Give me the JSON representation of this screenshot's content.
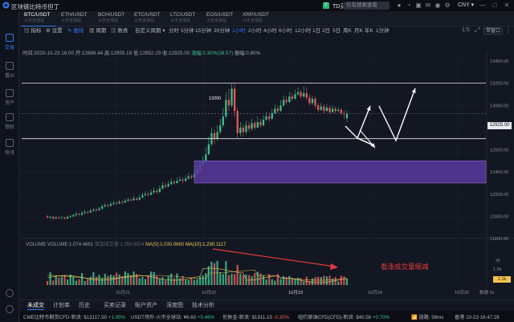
{
  "window": {
    "title": "区块链比特币但丁",
    "td_label": "TD买入",
    "search_placeholder": "仅有搜索查看",
    "currency": "CNY",
    "currency_arrow": "▾"
  },
  "sidebar": {
    "items": [
      {
        "label": "交易",
        "icon": "chart-icon"
      },
      {
        "label": "看AI",
        "icon": "eye-icon"
      },
      {
        "label": "资产",
        "icon": "wallet-icon"
      },
      {
        "label": "授权",
        "icon": "key-icon"
      },
      {
        "label": "快讯",
        "icon": "news-icon"
      }
    ]
  },
  "symbol_tabs": [
    {
      "name": "BTC/USDT",
      "sub": "火币全球站"
    },
    {
      "name": "ETH/USDT",
      "sub": "火币全球站"
    },
    {
      "name": "BCH/USDT",
      "sub": "火币全球站"
    },
    {
      "name": "ETC/USDT",
      "sub": "火币全球站"
    },
    {
      "name": "LTC/USDT",
      "sub": "火币全球站"
    },
    {
      "name": "EOS/USDT",
      "sub": "火币全球站"
    },
    {
      "name": "XRP/USDT",
      "sub": "火币全球站"
    }
  ],
  "toolbar": {
    "tools": [
      "指标",
      "设置",
      "画线",
      "周期",
      "数表"
    ],
    "active_tool": "画线",
    "time_define": "自定义周期",
    "periods": [
      "分时",
      "5分钟",
      "15分钟",
      "30分钟",
      "1小时",
      "2小时",
      "4小时",
      "6小时",
      "12小时",
      "1日",
      "2日",
      "5日",
      "周K",
      "月K",
      "年K",
      "1分钟"
    ],
    "active_period": "1小时",
    "zoom": "1:5",
    "pro_label": "带窗口"
  },
  "ohlc": {
    "time": "时间:2020-10-23 16:00",
    "open": "开:12886.44",
    "high": "高:12955.19",
    "low": "低:12852.29",
    "close": "收:12925.00",
    "change": "涨幅:0.30%(38.57)",
    "amplitude": "振幅:0.80%"
  },
  "price_axis": {
    "ticks": [
      "13400.00",
      "13200.00",
      "13000.00",
      "12800.00",
      "12600.00",
      "12400.00",
      "12200.00",
      "12000.00",
      "11800.00"
    ],
    "current_price": "12925.00"
  },
  "peak_label": "13200",
  "volume": {
    "title": "VOLUME",
    "value": "VOLUME:1,074.4661",
    "muted": "增加成交量:1,358.6504",
    "ma5": "MA(5):1,030.0660",
    "ma10": "MA(10):1,230.1117",
    "axis_label": "1.1k",
    "axis_ticks": [
      "2k",
      "1.5k"
    ]
  },
  "annotation": "看涨成交量缩减",
  "dates": [
    "10月21",
    "10月22",
    "10月23",
    "10月24",
    "10月25"
  ],
  "date_right": "数据 5v",
  "bottom_tabs": [
    "未成交",
    "计划单",
    "历史",
    "买卖记录",
    "账户资产",
    "深度图",
    "技术分析"
  ],
  "status": {
    "item1_name": "CME比特币期货CFD-新浪:",
    "item1_val": "$13117.50",
    "item1_chg": "+1.00%",
    "item2_name": "USDT场外-火币全球站:",
    "item2_val": "¥6.60",
    "item2_chg": "+0.46%",
    "item3_name": "伦敦金-新浪:",
    "item3_val": "$1911.19",
    "item3_chg": "-0.30%",
    "item4_name": "纽约原油CFD(CFD)-新浪:",
    "item4_val": "$40.56",
    "item4_chg": "+0.70%",
    "latency": "链路: 56ms",
    "region": "香港",
    "clock": "10-23 16:47:28"
  },
  "colors": {
    "up": "#3fbf8d",
    "down": "#e85a5a",
    "zone": "#5b3a9e",
    "accent": "#2e7cf6"
  }
}
